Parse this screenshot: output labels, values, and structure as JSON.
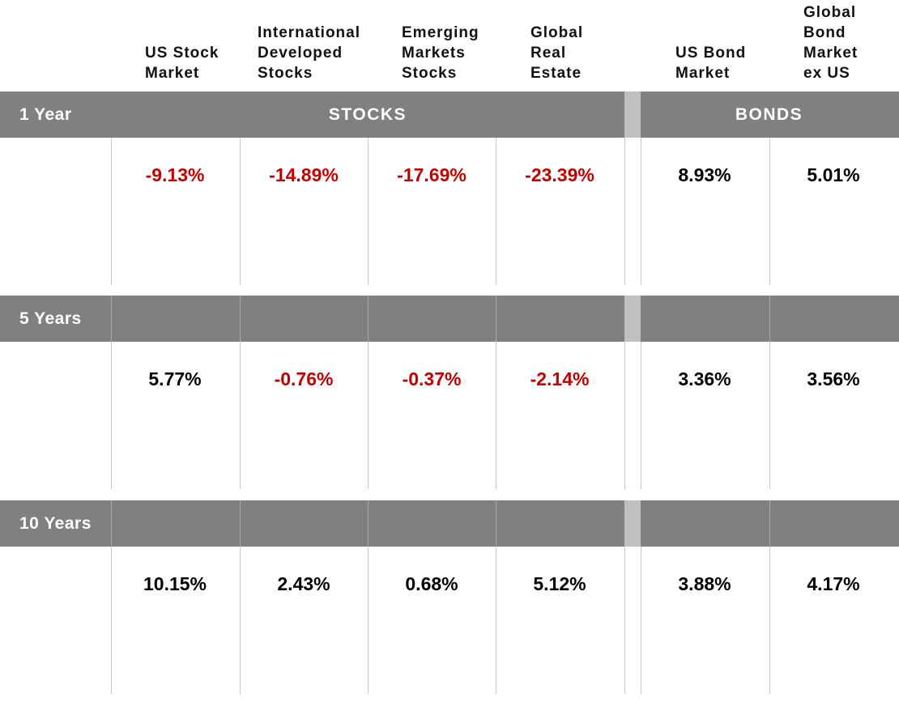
{
  "columns": [
    {
      "key": "us_stock",
      "header": "US Stock\nMarket"
    },
    {
      "key": "intl_dev",
      "header": "International\nDeveloped\nStocks"
    },
    {
      "key": "emerging",
      "header": "Emerging\nMarkets\nStocks"
    },
    {
      "key": "global_re",
      "header": "Global\nReal\nEstate"
    },
    {
      "key": "us_bond",
      "header": "US Bond\nMarket"
    },
    {
      "key": "global_bond",
      "header": "Global\nBond\nMarket\nex US"
    }
  ],
  "groups": {
    "stocks": "STOCKS",
    "bonds": "BONDS"
  },
  "chart_data": {
    "type": "table",
    "unit": "%",
    "rows": [
      {
        "label": "1 Year",
        "display": [
          "-9.13%",
          "-14.89%",
          "-17.69%",
          "-23.39%",
          "8.93%",
          "5.01%"
        ],
        "values": [
          -9.13,
          -14.89,
          -17.69,
          -23.39,
          8.93,
          5.01
        ]
      },
      {
        "label": "5 Years",
        "display": [
          "5.77%",
          "-0.76%",
          "-0.37%",
          "-2.14%",
          "3.36%",
          "3.56%"
        ],
        "values": [
          5.77,
          -0.76,
          -0.37,
          -2.14,
          3.36,
          3.56
        ]
      },
      {
        "label": "10 Years",
        "display": [
          "10.15%",
          "2.43%",
          "0.68%",
          "5.12%",
          "3.88%",
          "4.17%"
        ],
        "values": [
          10.15,
          2.43,
          0.68,
          5.12,
          3.88,
          4.17
        ]
      }
    ],
    "colors": {
      "negative": "#c00000",
      "positive": "#000000",
      "band": "#808080",
      "gap": "#c0c0c0"
    }
  }
}
